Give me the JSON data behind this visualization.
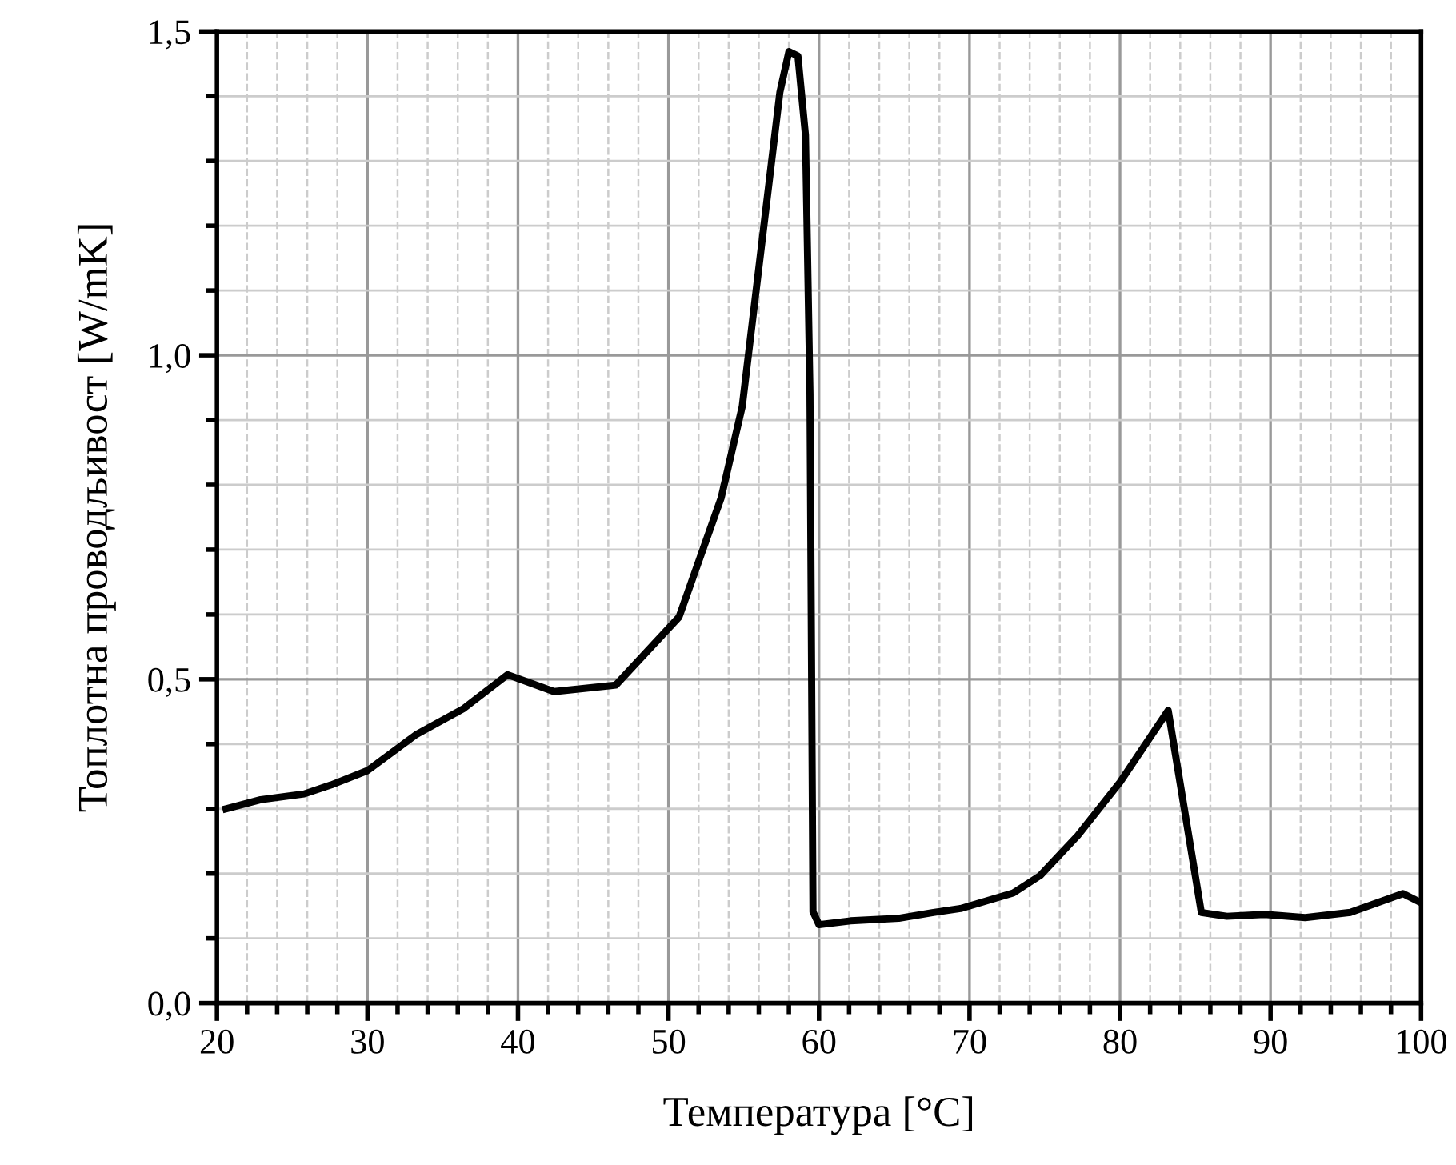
{
  "chart_data": {
    "type": "line",
    "xlabel": "Температура [°C]",
    "ylabel": "Топлотна проводљивост [W/mK]",
    "x": [
      20.6,
      22.9,
      25.8,
      27.6,
      30.0,
      33.2,
      36.4,
      39.3,
      42.4,
      46.5,
      50.7,
      53.5,
      54.9,
      57.4,
      58.0,
      58.6,
      59.1,
      59.4,
      59.6,
      60.0,
      62.1,
      65.3,
      67.6,
      69.4,
      72.9,
      74.7,
      77.2,
      80.0,
      83.2,
      85.4,
      87.1,
      89.6,
      92.3,
      95.3,
      98.8,
      100.0
    ],
    "series": [
      {
        "color": "#000000",
        "values": [
          0.3,
          0.314,
          0.323,
          0.337,
          0.359,
          0.414,
          0.455,
          0.507,
          0.481,
          0.491,
          0.596,
          0.78,
          0.921,
          1.406,
          1.469,
          1.462,
          1.34,
          0.941,
          0.141,
          0.121,
          0.127,
          0.131,
          0.14,
          0.146,
          0.17,
          0.197,
          0.259,
          0.341,
          0.452,
          0.14,
          0.134,
          0.137,
          0.132,
          0.14,
          0.169,
          0.155
        ]
      }
    ],
    "xlim": [
      20,
      100
    ],
    "ylim": [
      0,
      1.5
    ],
    "xticks": [
      20,
      30,
      40,
      50,
      60,
      70,
      80,
      90,
      100
    ],
    "yticks": [
      {
        "value": 0,
        "label": "0,0"
      },
      {
        "value": 0.5,
        "label": "0,5"
      },
      {
        "value": 1.0,
        "label": "1,0"
      },
      {
        "value": 1.5,
        "label": "1,5"
      }
    ],
    "grid": true,
    "marker": "none",
    "line_style": "solid"
  }
}
